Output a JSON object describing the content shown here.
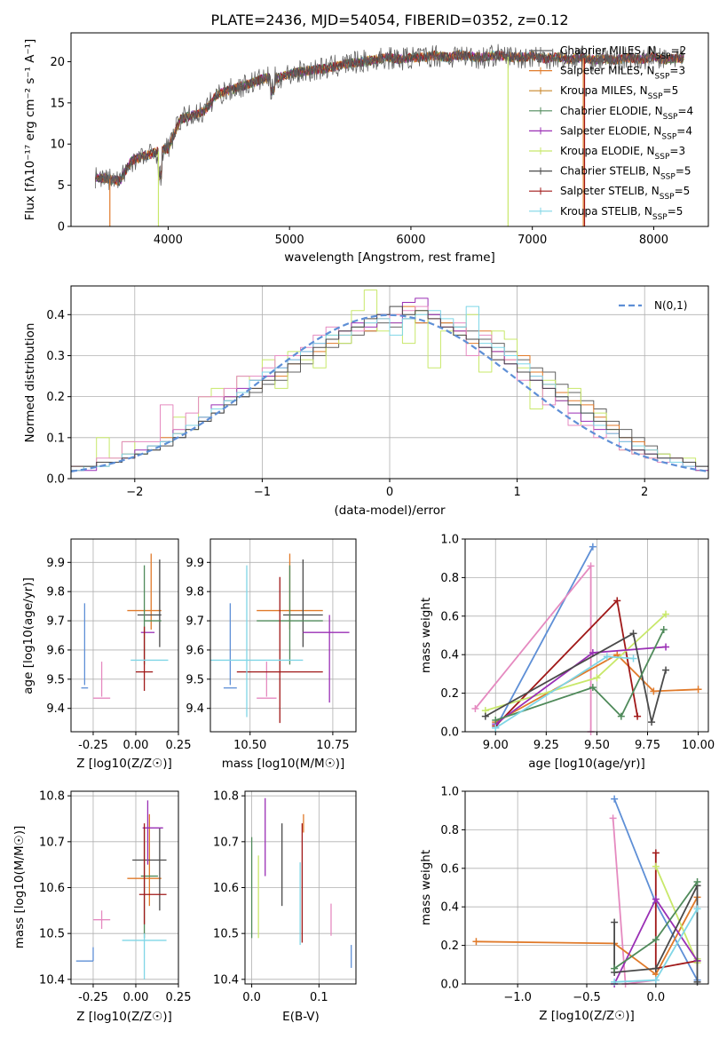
{
  "chart_data": [
    {
      "type": "line",
      "title": "PLATE=2436, MJD=54054, FIBERID=0352, z=0.12",
      "xlabel": "wavelength [Angstrom, rest frame]",
      "ylabel": "Flux [f",
      "ylabel_full": "Flux [fλ10⁻¹⁷ erg cm⁻² s⁻¹ A⁻¹]",
      "xlim": [
        3200,
        8450
      ],
      "ylim": [
        0,
        23.5
      ],
      "xticks": [
        4000,
        5000,
        6000,
        7000,
        8000
      ],
      "yticks": [
        0,
        5,
        10,
        15,
        20
      ],
      "spectrum_envelope": {
        "x": [
          3400,
          3500,
          3600,
          3700,
          3800,
          3900,
          4000,
          4100,
          4200,
          4300,
          4400,
          4500,
          4600,
          4700,
          4800,
          4900,
          5000,
          5100,
          5200,
          5300,
          5400,
          5500,
          5600,
          5700,
          5800,
          5900,
          6000,
          6100,
          6200,
          6300,
          6400,
          6500,
          6600,
          6700,
          6800,
          6900,
          7000,
          7100,
          7200,
          7300,
          7400,
          7500,
          7600,
          7700,
          7800,
          7900,
          8000,
          8100,
          8200,
          8250
        ],
        "y": [
          6.0,
          5.8,
          5.5,
          8.0,
          8.5,
          9.0,
          9.5,
          13.0,
          13.5,
          14.0,
          16.0,
          16.5,
          17.0,
          17.5,
          18.0,
          18.0,
          18.5,
          18.8,
          19.0,
          19.2,
          19.5,
          19.8,
          20.0,
          20.2,
          20.5,
          20.3,
          20.5,
          20.5,
          20.8,
          20.5,
          20.8,
          20.6,
          20.5,
          20.8,
          20.6,
          20.5,
          20.7,
          20.4,
          20.6,
          20.3,
          20.5,
          20.2,
          20.4,
          20.2,
          20.5,
          20.3,
          20.6,
          20.2,
          20.5,
          20.4
        ]
      },
      "series": [
        {
          "name": "Chabrier MILES, N",
          "sub": "SSP",
          "suffix": "=2",
          "color": "#606060"
        },
        {
          "name": "Salpeter MILES, N",
          "sub": "SSP",
          "suffix": "=3",
          "color": "#e07a2a"
        },
        {
          "name": "Kroupa MILES, N",
          "sub": "SSP",
          "suffix": "=5",
          "color": "#c8862a"
        },
        {
          "name": "Chabrier ELODIE, N",
          "sub": "SSP",
          "suffix": "=4",
          "color": "#4f8a5a"
        },
        {
          "name": "Salpeter ELODIE, N",
          "sub": "SSP",
          "suffix": "=4",
          "color": "#9a2fb5"
        },
        {
          "name": "Kroupa ELODIE, N",
          "sub": "SSP",
          "suffix": "=3",
          "color": "#c8e86a"
        },
        {
          "name": "Chabrier STELIB, N",
          "sub": "SSP",
          "suffix": "=5",
          "color": "#4a4a4a"
        },
        {
          "name": "Salpeter STELIB, N",
          "sub": "SSP",
          "suffix": "=5",
          "color": "#a01818"
        },
        {
          "name": "Kroupa STELIB, N",
          "sub": "SSP",
          "suffix": "=5",
          "color": "#7fd6e6"
        }
      ]
    },
    {
      "type": "line",
      "xlabel": "(data-model)/error",
      "ylabel": "Normed distribution",
      "xlim": [
        -2.5,
        2.5
      ],
      "ylim": [
        0,
        0.47
      ],
      "xticks": [
        -2,
        -1,
        0,
        1,
        2
      ],
      "yticks": [
        0.0,
        0.1,
        0.2,
        0.3,
        0.4
      ],
      "legend": "N(0,1)",
      "bin_edges_step": 0.1,
      "histograms": [
        {
          "color": "#606060",
          "values": [
            0.02,
            0.03,
            0.03,
            0.04,
            0.05,
            0.06,
            0.07,
            0.09,
            0.1,
            0.12,
            0.14,
            0.16,
            0.19,
            0.2,
            0.21,
            0.23,
            0.24,
            0.26,
            0.28,
            0.3,
            0.32,
            0.33,
            0.35,
            0.36,
            0.38,
            0.37,
            0.39,
            0.38,
            0.4,
            0.38,
            0.37,
            0.36,
            0.34,
            0.33,
            0.31,
            0.29,
            0.27,
            0.26,
            0.23,
            0.21,
            0.19,
            0.17,
            0.14,
            0.12,
            0.1,
            0.08,
            0.06,
            0.05,
            0.04,
            0.03
          ]
        },
        {
          "color": "#e07a2a",
          "values": [
            0.03,
            0.03,
            0.04,
            0.04,
            0.06,
            0.06,
            0.08,
            0.1,
            0.11,
            0.13,
            0.15,
            0.17,
            0.2,
            0.21,
            0.22,
            0.25,
            0.25,
            0.28,
            0.3,
            0.31,
            0.33,
            0.35,
            0.37,
            0.36,
            0.39,
            0.4,
            0.42,
            0.38,
            0.39,
            0.38,
            0.36,
            0.33,
            0.36,
            0.31,
            0.29,
            0.3,
            0.26,
            0.23,
            0.21,
            0.19,
            0.18,
            0.15,
            0.13,
            0.1,
            0.09,
            0.07,
            0.05,
            0.05,
            0.04,
            0.03
          ]
        },
        {
          "color": "#c8e86a",
          "values": [
            0.02,
            0.03,
            0.1,
            0.05,
            0.09,
            0.06,
            0.08,
            0.09,
            0.15,
            0.12,
            0.2,
            0.22,
            0.2,
            0.25,
            0.24,
            0.29,
            0.22,
            0.31,
            0.29,
            0.27,
            0.35,
            0.33,
            0.41,
            0.46,
            0.36,
            0.38,
            0.33,
            0.41,
            0.27,
            0.36,
            0.35,
            0.4,
            0.26,
            0.36,
            0.34,
            0.27,
            0.17,
            0.24,
            0.19,
            0.22,
            0.13,
            0.16,
            0.12,
            0.07,
            0.06,
            0.05,
            0.06,
            0.04,
            0.05,
            0.02
          ]
        },
        {
          "color": "#9a2fb5",
          "values": [
            0.02,
            0.02,
            0.04,
            0.04,
            0.05,
            0.07,
            0.08,
            0.09,
            0.12,
            0.13,
            0.15,
            0.18,
            0.2,
            0.22,
            0.24,
            0.25,
            0.27,
            0.29,
            0.31,
            0.33,
            0.34,
            0.36,
            0.38,
            0.37,
            0.4,
            0.38,
            0.43,
            0.44,
            0.4,
            0.37,
            0.36,
            0.34,
            0.32,
            0.31,
            0.28,
            0.26,
            0.24,
            0.22,
            0.19,
            0.16,
            0.14,
            0.12,
            0.11,
            0.09,
            0.07,
            0.06,
            0.05,
            0.04,
            0.03,
            0.02
          ]
        },
        {
          "color": "#e58ac0",
          "values": [
            0.03,
            0.03,
            0.05,
            0.05,
            0.09,
            0.09,
            0.09,
            0.18,
            0.12,
            0.16,
            0.2,
            0.2,
            0.22,
            0.25,
            0.25,
            0.27,
            0.3,
            0.3,
            0.32,
            0.35,
            0.37,
            0.36,
            0.36,
            0.38,
            0.39,
            0.4,
            0.41,
            0.42,
            0.39,
            0.37,
            0.38,
            0.3,
            0.35,
            0.29,
            0.29,
            0.24,
            0.25,
            0.18,
            0.2,
            0.13,
            0.13,
            0.1,
            0.11,
            0.07,
            0.06,
            0.05,
            0.04,
            0.05,
            0.03,
            0.03
          ]
        },
        {
          "color": "#7fd6e6",
          "values": [
            0.02,
            0.03,
            0.03,
            0.04,
            0.06,
            0.06,
            0.08,
            0.09,
            0.11,
            0.13,
            0.15,
            0.17,
            0.19,
            0.21,
            0.24,
            0.26,
            0.27,
            0.29,
            0.31,
            0.33,
            0.35,
            0.35,
            0.37,
            0.38,
            0.39,
            0.35,
            0.39,
            0.4,
            0.41,
            0.39,
            0.37,
            0.42,
            0.33,
            0.32,
            0.3,
            0.28,
            0.25,
            0.23,
            0.2,
            0.18,
            0.16,
            0.13,
            0.11,
            0.09,
            0.08,
            0.07,
            0.05,
            0.04,
            0.03,
            0.03
          ]
        },
        {
          "color": "#4a4a4a",
          "values": [
            0.03,
            0.03,
            0.04,
            0.04,
            0.05,
            0.06,
            0.07,
            0.08,
            0.1,
            0.12,
            0.14,
            0.16,
            0.18,
            0.2,
            0.22,
            0.24,
            0.26,
            0.28,
            0.3,
            0.32,
            0.34,
            0.36,
            0.37,
            0.39,
            0.4,
            0.42,
            0.4,
            0.41,
            0.39,
            0.37,
            0.35,
            0.34,
            0.32,
            0.29,
            0.28,
            0.26,
            0.24,
            0.22,
            0.2,
            0.18,
            0.16,
            0.14,
            0.12,
            0.1,
            0.07,
            0.06,
            0.05,
            0.05,
            0.04,
            0.03
          ]
        }
      ]
    },
    {
      "type": "scatter",
      "panel": "age-vs-Z",
      "xlabel": "Z [log",
      "xlabel_full": "Z [log10(Z/Z☉)]",
      "ylabel": "age [log10(age/yr)]",
      "xlim": [
        -0.38,
        0.25
      ],
      "ylim": [
        9.32,
        9.98
      ],
      "xticks": [
        "-0.25",
        "0.00",
        "0.25"
      ],
      "yticks": [
        "9.4",
        "9.5",
        "9.6",
        "9.7",
        "9.8",
        "9.9"
      ]
    },
    {
      "type": "scatter",
      "panel": "age-vs-mass",
      "xlabel": "mass [log10(M/M☉)]",
      "xlim": [
        10.38,
        10.82
      ],
      "ylim": [
        9.32,
        9.98
      ],
      "xticks": [
        "10.50",
        "10.75"
      ]
    },
    {
      "type": "line",
      "panel": "weight-vs-age",
      "xlabel": "age [log10(age/yr)]",
      "ylabel": "mass weight",
      "xlim": [
        8.85,
        10.05
      ],
      "ylim": [
        0,
        1.0
      ],
      "xticks": [
        "9.00",
        "9.25",
        "9.50",
        "9.75",
        "10.00"
      ],
      "yticks": [
        "0.0",
        "0.2",
        "0.4",
        "0.6",
        "0.8",
        "1.0"
      ],
      "series": [
        {
          "color": "#5e8fd6",
          "x": [
            9.0,
            9.48
          ],
          "y": [
            0.02,
            0.96
          ]
        },
        {
          "color": "#e58ac0",
          "x": [
            8.9,
            9.47,
            9.47
          ],
          "y": [
            0.12,
            0.86,
            0.0
          ]
        },
        {
          "color": "#e07a2a",
          "x": [
            9.0,
            9.6,
            9.78,
            10.0
          ],
          "y": [
            0.05,
            0.4,
            0.21,
            0.22
          ]
        },
        {
          "color": "#a01818",
          "x": [
            9.0,
            9.6,
            9.7
          ],
          "y": [
            0.03,
            0.68,
            0.08
          ]
        },
        {
          "color": "#c8e86a",
          "x": [
            8.95,
            9.5,
            9.84
          ],
          "y": [
            0.11,
            0.28,
            0.61
          ]
        },
        {
          "color": "#9a2fb5",
          "x": [
            9.0,
            9.48,
            9.84
          ],
          "y": [
            0.04,
            0.41,
            0.44
          ]
        },
        {
          "color": "#4a4a4a",
          "x": [
            8.95,
            9.68,
            9.77,
            9.84
          ],
          "y": [
            0.08,
            0.51,
            0.05,
            0.32
          ]
        },
        {
          "color": "#4f8a5a",
          "x": [
            9.0,
            9.48,
            9.62,
            9.83
          ],
          "y": [
            0.06,
            0.23,
            0.08,
            0.53
          ]
        },
        {
          "color": "#7fd6e6",
          "x": [
            9.0,
            9.55,
            9.68
          ],
          "y": [
            0.02,
            0.39,
            0.38
          ]
        }
      ]
    },
    {
      "type": "scatter",
      "panel": "mass-vs-Z",
      "ylabel": "mass [log10(M/M☉)]",
      "xlim": [
        -0.38,
        0.25
      ],
      "ylim": [
        10.39,
        10.81
      ],
      "xticks": [
        "-0.25",
        "0.00",
        "0.25"
      ],
      "yticks": [
        "10.4",
        "10.5",
        "10.6",
        "10.7",
        "10.8"
      ]
    },
    {
      "type": "scatter",
      "panel": "mass-vs-EBV",
      "xlabel": "E(B-V)",
      "xlim": [
        -0.01,
        0.155
      ],
      "ylim": [
        10.39,
        10.81
      ],
      "xticks": [
        "0.0",
        "0.1"
      ],
      "yticks": [
        "10.4",
        "10.5",
        "10.6",
        "10.7",
        "10.8"
      ]
    },
    {
      "type": "line",
      "panel": "weight-vs-Z",
      "xlabel": "Z [log10(Z/Z☉)]",
      "ylabel": "mass weight",
      "xlim": [
        -1.38,
        0.38
      ],
      "ylim": [
        0,
        1.0
      ],
      "xticks": [
        "−1.0",
        "−0.5",
        "0.0"
      ],
      "yticks": [
        "0.0",
        "0.2",
        "0.4",
        "0.6",
        "0.8",
        "1.0"
      ],
      "series": [
        {
          "color": "#5e8fd6",
          "x": [
            -0.3,
            0.0,
            0.3
          ],
          "y": [
            0.96,
            0.42,
            0.02
          ]
        },
        {
          "color": "#e58ac0",
          "x": [
            -0.31,
            -0.22,
            0.0
          ],
          "y": [
            0.86,
            0.0,
            0.02
          ]
        },
        {
          "color": "#e07a2a",
          "x": [
            -1.3,
            -0.3,
            0.0,
            0.3
          ],
          "y": [
            0.22,
            0.21,
            0.05,
            0.45
          ]
        },
        {
          "color": "#a01818",
          "x": [
            0.0,
            0.0,
            0.3
          ],
          "y": [
            0.68,
            0.08,
            0.12
          ]
        },
        {
          "color": "#c8e86a",
          "x": [
            0.0,
            0.3,
            0.3
          ],
          "y": [
            0.61,
            0.11,
            0.13
          ]
        },
        {
          "color": "#9a2fb5",
          "x": [
            -0.3,
            0.0,
            0.3
          ],
          "y": [
            0.0,
            0.44,
            0.12
          ]
        },
        {
          "color": "#4a4a4a",
          "x": [
            -0.3,
            -0.3,
            0.0,
            0.3,
            0.3
          ],
          "y": [
            0.32,
            0.06,
            0.08,
            0.51,
            0.01
          ]
        },
        {
          "color": "#4f8a5a",
          "x": [
            -0.3,
            0.0,
            0.3
          ],
          "y": [
            0.08,
            0.23,
            0.53
          ]
        },
        {
          "color": "#7fd6e6",
          "x": [
            -0.3,
            0.0,
            0.3
          ],
          "y": [
            0.01,
            0.02,
            0.39
          ]
        }
      ]
    }
  ],
  "labels": {
    "title": "PLATE=2436, MJD=54054, FIBERID=0352, z=0.12",
    "top_xlabel": "wavelength [Angstrom, rest frame]",
    "top_ylabel": "Flux [fλ10⁻¹⁷ erg cm⁻² s⁻¹ A⁻¹]",
    "hist_xlabel": "(data-model)/error",
    "hist_ylabel": "Normed distribution",
    "hist_legend": "N(0,1)",
    "age_ylabel": "age  [log10(age/yr)]",
    "z_xlabel": "Z [log10(Z/Z☉)]",
    "mass_xlabel": "mass [log10(M/M☉)]",
    "weight_ylabel": "mass weight",
    "age_xlabel": "age  [log10(age/yr)]",
    "mass_ylabel": "mass [log10(M/M☉)]",
    "ebv_xlabel": "E(B-V)"
  }
}
